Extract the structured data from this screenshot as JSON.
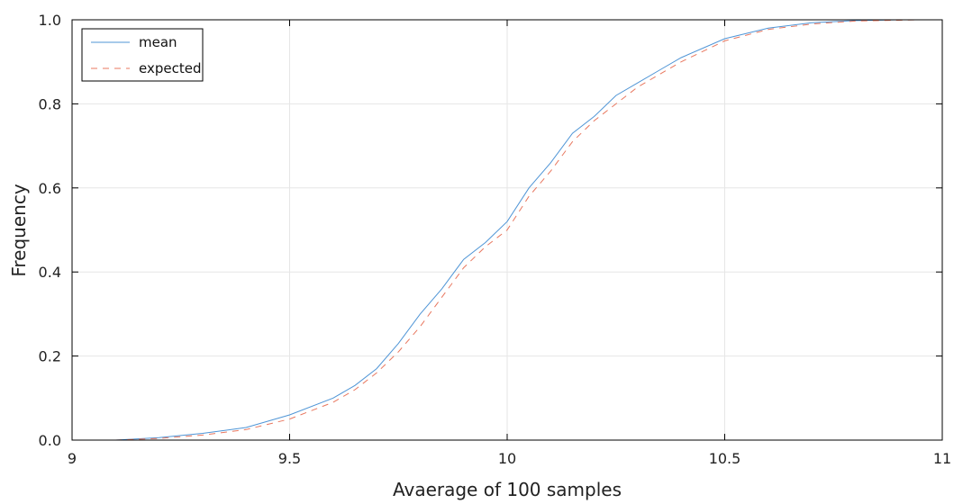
{
  "chart_data": {
    "type": "line",
    "title": "",
    "xlabel": "Avaerage of 100 samples",
    "ylabel": "Frequency",
    "xlim": [
      9,
      11
    ],
    "ylim": [
      0,
      1
    ],
    "x_ticks": [
      "9",
      "9.5",
      "10",
      "10.5",
      "11"
    ],
    "y_ticks": [
      "0.0",
      "0.2",
      "0.4",
      "0.6",
      "0.8",
      "1.0"
    ],
    "grid": true,
    "legend_position": "top-left",
    "colors": {
      "mean": "#4f95d6",
      "expected": "#e8775f"
    },
    "series": [
      {
        "name": "mean",
        "style": "solid",
        "x": [
          9.1,
          9.2,
          9.3,
          9.4,
          9.5,
          9.6,
          9.65,
          9.7,
          9.75,
          9.8,
          9.85,
          9.9,
          9.95,
          10.0,
          10.05,
          10.1,
          10.15,
          10.2,
          10.25,
          10.3,
          10.35,
          10.4,
          10.5,
          10.6,
          10.7,
          10.8,
          10.9,
          10.95
        ],
        "values": [
          0.0,
          0.006,
          0.016,
          0.03,
          0.06,
          0.1,
          0.13,
          0.17,
          0.23,
          0.3,
          0.36,
          0.43,
          0.47,
          0.52,
          0.6,
          0.66,
          0.73,
          0.77,
          0.82,
          0.85,
          0.88,
          0.91,
          0.955,
          0.98,
          0.993,
          0.998,
          1.0,
          1.0
        ]
      },
      {
        "name": "expected",
        "style": "dashed",
        "x": [
          9.1,
          9.2,
          9.3,
          9.4,
          9.5,
          9.6,
          9.65,
          9.7,
          9.75,
          9.8,
          9.85,
          9.9,
          9.95,
          10.0,
          10.05,
          10.1,
          10.15,
          10.2,
          10.25,
          10.3,
          10.35,
          10.4,
          10.5,
          10.6,
          10.7,
          10.8,
          10.9,
          10.95
        ],
        "values": [
          0.0,
          0.004,
          0.012,
          0.025,
          0.05,
          0.09,
          0.12,
          0.16,
          0.21,
          0.27,
          0.34,
          0.41,
          0.46,
          0.5,
          0.58,
          0.64,
          0.71,
          0.76,
          0.8,
          0.84,
          0.87,
          0.9,
          0.95,
          0.977,
          0.99,
          0.997,
          0.999,
          1.0
        ]
      }
    ]
  }
}
